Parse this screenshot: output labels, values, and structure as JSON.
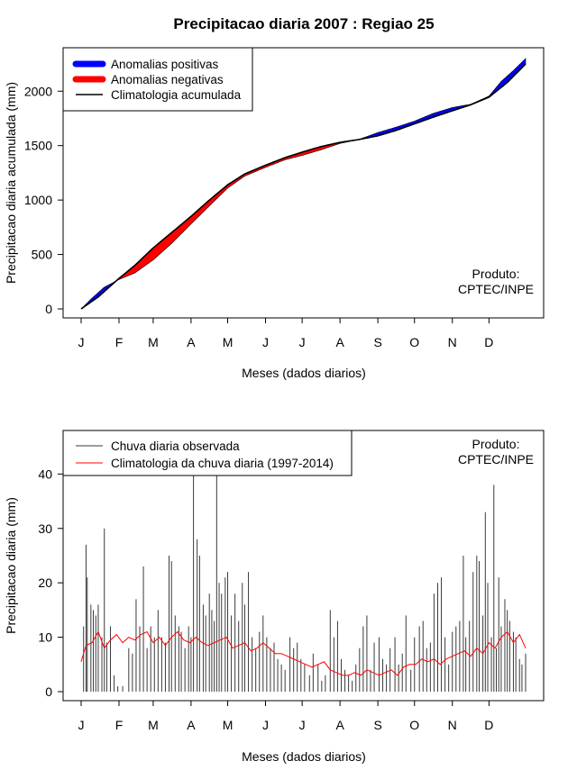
{
  "title": "Precipitacao diaria 2007 : Regiao 25",
  "credit": {
    "line1": "Produto:",
    "line2": "CPTEC/INPE"
  },
  "colors": {
    "positive": "#0000ff",
    "negative": "#ff0000",
    "climatology": "#000000",
    "observed_bar": "#3a3a3a",
    "climatology_daily": "#ff0000"
  },
  "chart_data": [
    {
      "type": "area",
      "name": "cumulative",
      "xlabel": "Meses (dados diarios)",
      "ylabel": "Precipitacao diaria acumulada (mm)",
      "ylim": [
        0,
        2300
      ],
      "yticks": [
        0,
        500,
        1000,
        1500,
        2000
      ],
      "months": [
        "J",
        "F",
        "M",
        "A",
        "M",
        "J",
        "J",
        "A",
        "S",
        "O",
        "N",
        "D"
      ],
      "month_start_days": [
        1,
        32,
        60,
        91,
        121,
        152,
        182,
        213,
        244,
        274,
        305,
        335
      ],
      "legend": [
        "Anomalias positivas",
        "Anomalias negativas",
        "Climatologia acumulada"
      ],
      "climatology_points": [
        [
          1,
          0
        ],
        [
          15,
          110
        ],
        [
          32,
          280
        ],
        [
          45,
          400
        ],
        [
          60,
          560
        ],
        [
          75,
          700
        ],
        [
          91,
          850
        ],
        [
          105,
          990
        ],
        [
          121,
          1140
        ],
        [
          135,
          1240
        ],
        [
          152,
          1320
        ],
        [
          168,
          1390
        ],
        [
          182,
          1440
        ],
        [
          197,
          1490
        ],
        [
          213,
          1530
        ],
        [
          228,
          1555
        ],
        [
          244,
          1590
        ],
        [
          259,
          1640
        ],
        [
          274,
          1700
        ],
        [
          289,
          1760
        ],
        [
          305,
          1820
        ],
        [
          320,
          1875
        ],
        [
          335,
          1945
        ],
        [
          350,
          2080
        ],
        [
          365,
          2250
        ]
      ],
      "observed_points": [
        [
          1,
          0
        ],
        [
          10,
          100
        ],
        [
          20,
          200
        ],
        [
          32,
          270
        ],
        [
          45,
          330
        ],
        [
          60,
          450
        ],
        [
          75,
          600
        ],
        [
          91,
          780
        ],
        [
          105,
          935
        ],
        [
          121,
          1110
        ],
        [
          135,
          1220
        ],
        [
          152,
          1300
        ],
        [
          168,
          1370
        ],
        [
          182,
          1410
        ],
        [
          197,
          1460
        ],
        [
          213,
          1520
        ],
        [
          228,
          1555
        ],
        [
          244,
          1620
        ],
        [
          259,
          1670
        ],
        [
          274,
          1725
        ],
        [
          289,
          1795
        ],
        [
          305,
          1850
        ],
        [
          320,
          1880
        ],
        [
          335,
          1955
        ],
        [
          345,
          2090
        ],
        [
          355,
          2190
        ],
        [
          365,
          2300
        ]
      ]
    },
    {
      "type": "bar",
      "name": "daily",
      "xlabel": "Meses (dados diarios)",
      "ylabel": "Precipitacao diaria (mm)",
      "ylim": [
        0,
        48
      ],
      "yticks": [
        0,
        10,
        20,
        30,
        40
      ],
      "months": [
        "J",
        "F",
        "M",
        "A",
        "M",
        "J",
        "J",
        "A",
        "S",
        "O",
        "N",
        "D"
      ],
      "month_start_days": [
        1,
        32,
        60,
        91,
        121,
        152,
        182,
        213,
        244,
        274,
        305,
        335
      ],
      "legend": [
        "Chuva diaria observada",
        "Climatologia da chuva diaria (1997-2014)"
      ],
      "observed_spikes": [
        [
          3,
          12
        ],
        [
          5,
          27
        ],
        [
          6,
          21
        ],
        [
          9,
          16
        ],
        [
          11,
          15
        ],
        [
          13,
          14
        ],
        [
          15,
          16
        ],
        [
          18,
          10
        ],
        [
          20,
          30
        ],
        [
          22,
          9
        ],
        [
          25,
          12
        ],
        [
          28,
          3
        ],
        [
          31,
          1
        ],
        [
          35,
          1
        ],
        [
          40,
          8
        ],
        [
          43,
          7
        ],
        [
          46,
          17
        ],
        [
          49,
          12
        ],
        [
          52,
          23
        ],
        [
          55,
          8
        ],
        [
          58,
          12
        ],
        [
          61,
          10
        ],
        [
          64,
          15
        ],
        [
          67,
          10
        ],
        [
          70,
          9
        ],
        [
          73,
          25
        ],
        [
          75,
          24
        ],
        [
          78,
          14
        ],
        [
          81,
          12
        ],
        [
          83,
          11
        ],
        [
          86,
          8
        ],
        [
          89,
          12
        ],
        [
          91,
          10
        ],
        [
          93,
          48
        ],
        [
          96,
          28
        ],
        [
          98,
          25
        ],
        [
          101,
          16
        ],
        [
          103,
          14
        ],
        [
          106,
          18
        ],
        [
          108,
          15
        ],
        [
          110,
          13
        ],
        [
          112,
          48
        ],
        [
          114,
          20
        ],
        [
          116,
          18
        ],
        [
          119,
          21
        ],
        [
          121,
          22
        ],
        [
          124,
          14
        ],
        [
          127,
          18
        ],
        [
          130,
          13
        ],
        [
          133,
          20
        ],
        [
          135,
          16
        ],
        [
          138,
          22
        ],
        [
          141,
          10
        ],
        [
          144,
          8
        ],
        [
          147,
          11
        ],
        [
          150,
          14
        ],
        [
          153,
          10
        ],
        [
          156,
          8
        ],
        [
          159,
          9
        ],
        [
          162,
          6
        ],
        [
          165,
          5
        ],
        [
          168,
          4
        ],
        [
          172,
          10
        ],
        [
          175,
          8
        ],
        [
          178,
          9
        ],
        [
          181,
          6
        ],
        [
          184,
          5
        ],
        [
          188,
          3
        ],
        [
          191,
          7
        ],
        [
          195,
          5
        ],
        [
          198,
          2
        ],
        [
          201,
          3
        ],
        [
          205,
          15
        ],
        [
          208,
          10
        ],
        [
          211,
          13
        ],
        [
          214,
          6
        ],
        [
          217,
          4
        ],
        [
          220,
          3
        ],
        [
          223,
          2
        ],
        [
          226,
          5
        ],
        [
          229,
          8
        ],
        [
          232,
          12
        ],
        [
          235,
          14
        ],
        [
          238,
          4
        ],
        [
          241,
          9
        ],
        [
          245,
          10
        ],
        [
          248,
          6
        ],
        [
          251,
          5
        ],
        [
          254,
          8
        ],
        [
          258,
          10
        ],
        [
          261,
          5
        ],
        [
          264,
          7
        ],
        [
          267,
          14
        ],
        [
          271,
          4
        ],
        [
          274,
          10
        ],
        [
          278,
          12
        ],
        [
          281,
          13
        ],
        [
          284,
          8
        ],
        [
          287,
          9
        ],
        [
          290,
          18
        ],
        [
          293,
          20
        ],
        [
          296,
          21
        ],
        [
          299,
          10
        ],
        [
          302,
          5
        ],
        [
          305,
          11
        ],
        [
          308,
          12
        ],
        [
          311,
          13
        ],
        [
          314,
          25
        ],
        [
          316,
          10
        ],
        [
          319,
          13
        ],
        [
          322,
          22
        ],
        [
          325,
          25
        ],
        [
          327,
          24
        ],
        [
          330,
          14
        ],
        [
          332,
          33
        ],
        [
          334,
          20
        ],
        [
          337,
          10
        ],
        [
          339,
          38
        ],
        [
          341,
          8
        ],
        [
          343,
          21
        ],
        [
          345,
          12
        ],
        [
          348,
          17
        ],
        [
          350,
          15
        ],
        [
          352,
          13
        ],
        [
          355,
          11
        ],
        [
          357,
          10
        ],
        [
          360,
          6
        ],
        [
          362,
          5
        ],
        [
          365,
          7
        ]
      ],
      "climatology_daily_points": [
        [
          1,
          5.5
        ],
        [
          5,
          8.5
        ],
        [
          10,
          9
        ],
        [
          15,
          11
        ],
        [
          20,
          8
        ],
        [
          25,
          9.5
        ],
        [
          30,
          10.5
        ],
        [
          35,
          9
        ],
        [
          40,
          10
        ],
        [
          45,
          9.5
        ],
        [
          50,
          10.5
        ],
        [
          55,
          11
        ],
        [
          60,
          9
        ],
        [
          65,
          10
        ],
        [
          70,
          8.5
        ],
        [
          75,
          10
        ],
        [
          80,
          11
        ],
        [
          85,
          9.5
        ],
        [
          90,
          9
        ],
        [
          95,
          10
        ],
        [
          100,
          9
        ],
        [
          105,
          8.5
        ],
        [
          110,
          9
        ],
        [
          115,
          9.5
        ],
        [
          120,
          10
        ],
        [
          125,
          8
        ],
        [
          130,
          8.5
        ],
        [
          135,
          9
        ],
        [
          140,
          7.5
        ],
        [
          145,
          8
        ],
        [
          150,
          9
        ],
        [
          155,
          8
        ],
        [
          160,
          7
        ],
        [
          165,
          7
        ],
        [
          170,
          6.5
        ],
        [
          175,
          6
        ],
        [
          180,
          5.5
        ],
        [
          185,
          5
        ],
        [
          190,
          4.5
        ],
        [
          195,
          5
        ],
        [
          200,
          5.5
        ],
        [
          205,
          4
        ],
        [
          210,
          3.5
        ],
        [
          215,
          3
        ],
        [
          220,
          3
        ],
        [
          225,
          3.5
        ],
        [
          230,
          3
        ],
        [
          235,
          4
        ],
        [
          240,
          3.5
        ],
        [
          245,
          3
        ],
        [
          250,
          3.5
        ],
        [
          255,
          4
        ],
        [
          260,
          3
        ],
        [
          265,
          4.5
        ],
        [
          270,
          5
        ],
        [
          275,
          5
        ],
        [
          280,
          6
        ],
        [
          285,
          5.5
        ],
        [
          290,
          6
        ],
        [
          295,
          5
        ],
        [
          300,
          6
        ],
        [
          305,
          6.5
        ],
        [
          310,
          7
        ],
        [
          315,
          7.5
        ],
        [
          320,
          6.5
        ],
        [
          325,
          8
        ],
        [
          330,
          7
        ],
        [
          335,
          9
        ],
        [
          340,
          8
        ],
        [
          345,
          10
        ],
        [
          350,
          11
        ],
        [
          355,
          9
        ],
        [
          360,
          10.5
        ],
        [
          365,
          8
        ]
      ]
    }
  ]
}
